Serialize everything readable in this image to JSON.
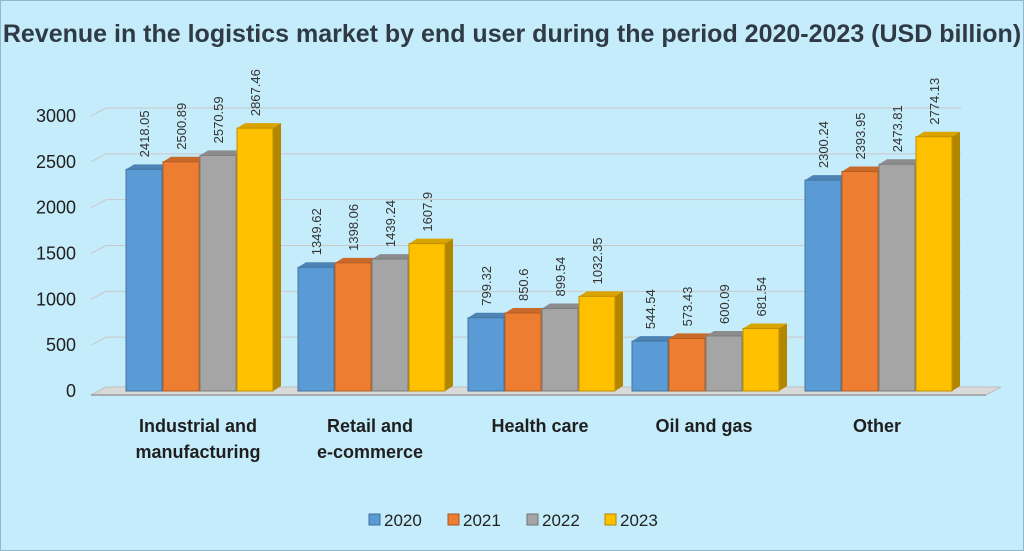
{
  "chart_data": {
    "type": "bar",
    "title": "Revenue in the logistics market by end user during the period 2020-2023 (USD billion)",
    "categories": [
      "Industrial and manufacturing",
      "Retail and e-commerce",
      "Health care",
      "Oil and gas",
      "Other"
    ],
    "category_lines": [
      [
        "Industrial and",
        "manufacturing"
      ],
      [
        "Retail and",
        "e-commerce"
      ],
      [
        "Health care"
      ],
      [
        "Oil and gas"
      ],
      [
        "Other"
      ]
    ],
    "series": [
      {
        "name": "2020",
        "values": [
          2418.05,
          1349.62,
          799.32,
          544.54,
          2300.24
        ],
        "labels": [
          "2418.05",
          "1349.62",
          "799.32",
          "544.54",
          "2300.24"
        ],
        "color": "#5b9bd5"
      },
      {
        "name": "2021",
        "values": [
          2500.89,
          1398.06,
          850.6,
          573.43,
          2393.95
        ],
        "labels": [
          "2500.89",
          "1398.06",
          "850.6",
          "573.43",
          "2393.95"
        ],
        "color": "#ed7d31"
      },
      {
        "name": "2022",
        "values": [
          2570.59,
          1439.24,
          899.54,
          600.09,
          2473.81
        ],
        "labels": [
          "2570.59",
          "1439.24",
          "899.54",
          "600.09",
          "2473.81"
        ],
        "color": "#a5a5a5"
      },
      {
        "name": "2023",
        "values": [
          2867.46,
          1607.9,
          1032.35,
          681.54,
          2774.13
        ],
        "labels": [
          "2867.46",
          "1607.9",
          "1032.35",
          "681.54",
          "2774.13"
        ],
        "color": "#ffc000"
      }
    ],
    "yticks": [
      "0",
      "500",
      "1000",
      "1500",
      "2000",
      "2500",
      "3000"
    ],
    "ylim": [
      0,
      3000
    ],
    "grid": true,
    "legend_position": "bottom",
    "style": "3d-columns"
  }
}
